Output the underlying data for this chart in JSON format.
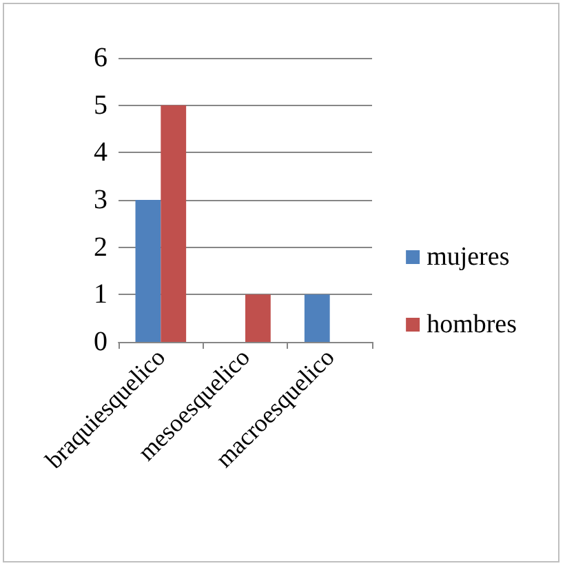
{
  "chart_data": {
    "type": "bar",
    "categories": [
      "braquiesquelico",
      "mesoesquelico",
      "macroesquelico"
    ],
    "series": [
      {
        "name": "mujeres",
        "color": "#4f81bd",
        "values": [
          3,
          0,
          1
        ]
      },
      {
        "name": "hombres",
        "color": "#c0504d",
        "values": [
          5,
          1,
          0
        ]
      }
    ],
    "ylim": [
      0,
      6
    ],
    "yticks": [
      0,
      1,
      2,
      3,
      4,
      5,
      6
    ],
    "grid": "y",
    "legend": "right"
  }
}
